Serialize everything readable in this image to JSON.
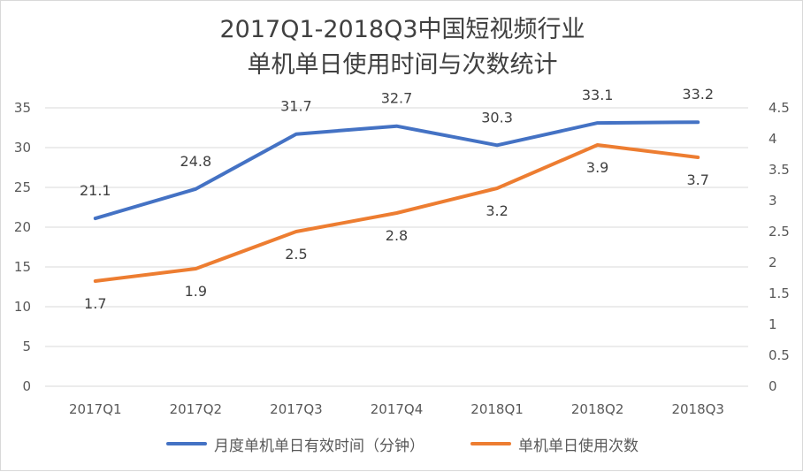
{
  "chart_data": {
    "type": "line",
    "title_line1": "2017Q1-2018Q3中国短视频行业",
    "title_line2": "单机单日使用时间与次数统计",
    "categories": [
      "2017Q1",
      "2017Q2",
      "2017Q3",
      "2017Q4",
      "2018Q1",
      "2018Q2",
      "2018Q3"
    ],
    "y_left": {
      "min": 0,
      "max": 35,
      "ticks": [
        "0",
        "5",
        "10",
        "15",
        "20",
        "25",
        "30",
        "35"
      ]
    },
    "y_right": {
      "min": 0,
      "max": 4.5,
      "ticks": [
        "0",
        "0.5",
        "1",
        "1.5",
        "2",
        "2.5",
        "3",
        "3.5",
        "4",
        "4.5"
      ]
    },
    "grid": true,
    "legend_position": "bottom",
    "series": [
      {
        "name": "月度单机单日有效时间（分钟）",
        "axis": "left",
        "color": "#4472c4",
        "values": [
          21.1,
          24.8,
          31.7,
          32.7,
          30.3,
          33.1,
          33.2
        ],
        "labels": [
          "21.1",
          "24.8",
          "31.7",
          "32.7",
          "30.3",
          "33.1",
          "33.2"
        ]
      },
      {
        "name": "单机单日使用次数",
        "axis": "right",
        "color": "#ed7d31",
        "values": [
          1.7,
          1.9,
          2.5,
          2.8,
          3.2,
          3.9,
          3.7
        ],
        "labels": [
          "1.7",
          "1.9",
          "2.5",
          "2.8",
          "3.2",
          "3.9",
          "3.7"
        ]
      }
    ]
  }
}
